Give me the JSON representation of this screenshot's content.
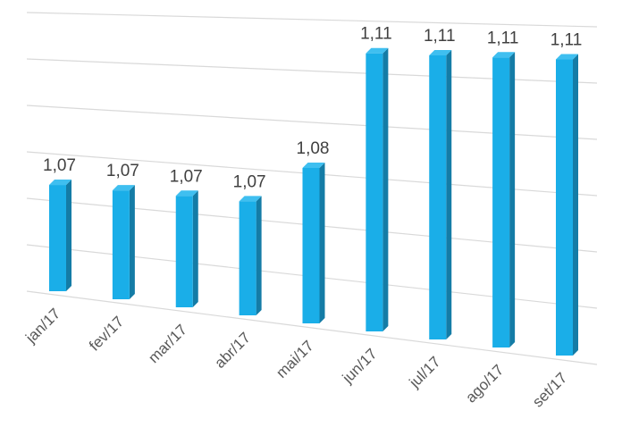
{
  "chart_data": {
    "type": "bar",
    "categories": [
      "jan/17",
      "fev/17",
      "mar/17",
      "abr/17",
      "mai/17",
      "jun/17",
      "jul/17",
      "ago/17",
      "set/17"
    ],
    "values": [
      1.07,
      1.07,
      1.07,
      1.07,
      1.08,
      1.11,
      1.11,
      1.11,
      1.11
    ],
    "labels": [
      "1,07",
      "1,07",
      "1,07",
      "1,07",
      "1,08",
      "1,11",
      "1,11",
      "1,11",
      "1,11"
    ],
    "title": "",
    "xlabel": "",
    "ylabel": "",
    "ylim": [
      1.04,
      1.115
    ],
    "grid": true,
    "legend": "none",
    "perspective": "3d",
    "colors": {
      "front": "#1aaee8",
      "side": "#147ca6",
      "top": "#3fbff0",
      "grid": "#d9d9d9"
    }
  }
}
